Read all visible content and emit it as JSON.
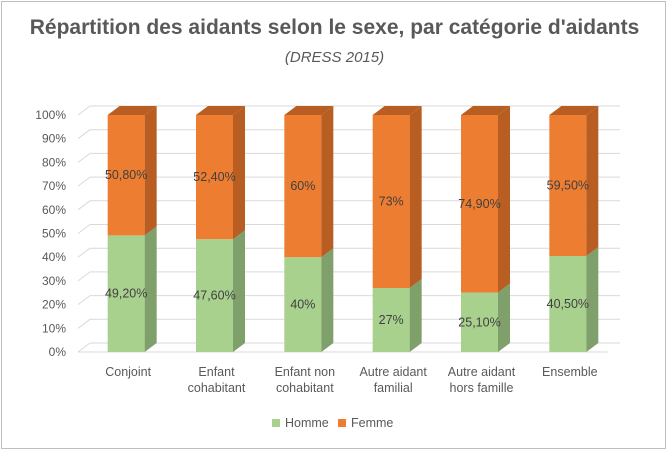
{
  "chart_data": {
    "type": "bar",
    "stacked": true,
    "three_d": true,
    "title": "Répartition des aidants selon le sexe, par catégorie d'aidants",
    "subtitle": "(DRESS 2015)",
    "categories": [
      [
        "Conjoint"
      ],
      [
        "Enfant",
        "cohabitant"
      ],
      [
        "Enfant non",
        "cohabitant"
      ],
      [
        "Autre aidant",
        "familial"
      ],
      [
        "Autre aidant",
        "hors famille"
      ],
      [
        "Ensemble"
      ]
    ],
    "series": [
      {
        "name": "Homme",
        "color": "#a9d18e",
        "side": "#7f9f6b",
        "values": [
          49.2,
          47.6,
          40,
          27,
          25.1,
          40.5
        ],
        "labels": [
          "49,20%",
          "47,60%",
          "40%",
          "27%",
          "25,10%",
          "40,50%"
        ]
      },
      {
        "name": "Femme",
        "color": "#ed7d31",
        "side": "#b85e22",
        "values": [
          50.8,
          52.4,
          60,
          73,
          74.9,
          59.5
        ],
        "labels": [
          "50,80%",
          "52,40%",
          "60%",
          "73%",
          "74,90%",
          "59,50%"
        ]
      }
    ],
    "yticks": [
      "0%",
      "10%",
      "20%",
      "30%",
      "40%",
      "50%",
      "60%",
      "70%",
      "80%",
      "90%",
      "100%"
    ],
    "ylim": [
      0,
      100
    ],
    "grid": true,
    "legend": "bottom"
  }
}
